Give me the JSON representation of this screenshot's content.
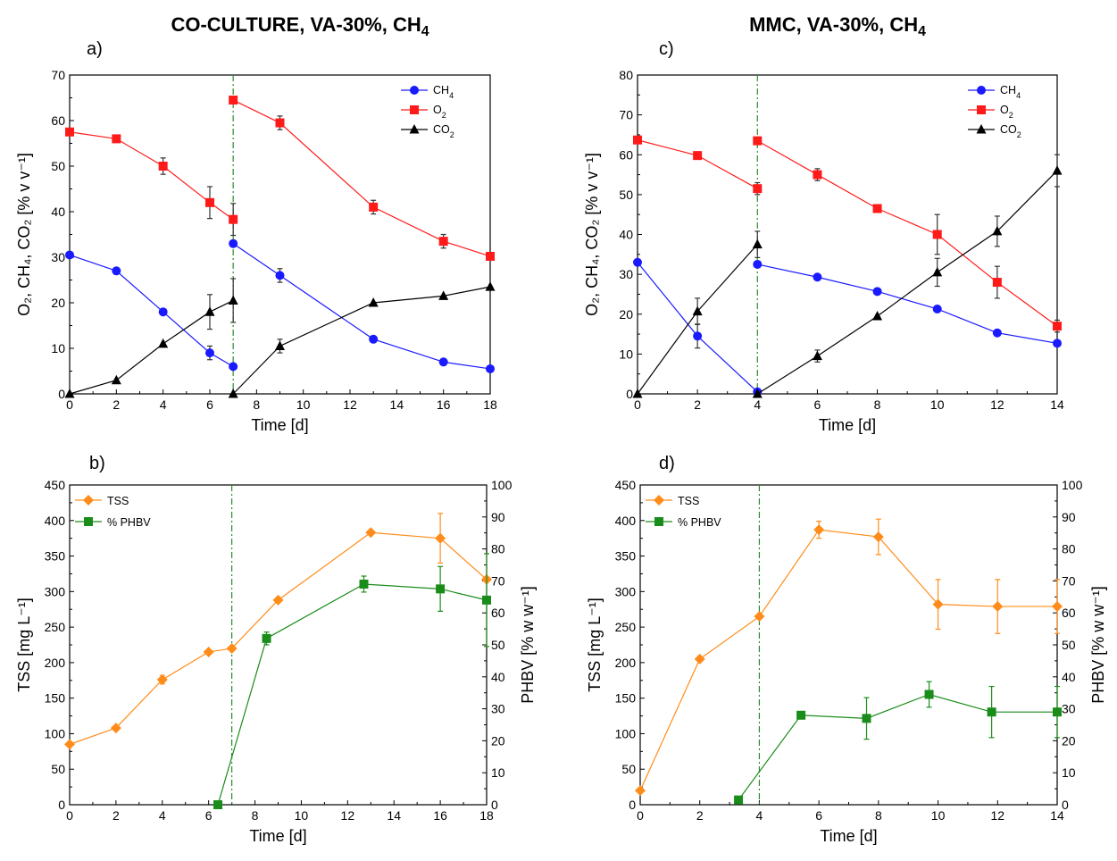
{
  "chart_data": [
    {
      "type": "line",
      "panel": "a)",
      "title": "CO-CULTURE, VA-30%, CH",
      "title_sub": "4",
      "xlabel": "Time [d]",
      "ylabel": "O₂, CH₄, CO₂ [% v v⁻¹]",
      "xlim": [
        0,
        18
      ],
      "ylim": [
        0,
        70
      ],
      "xticks": [
        0,
        2,
        4,
        6,
        8,
        10,
        12,
        14,
        16,
        18
      ],
      "yticks": [
        0,
        10,
        20,
        30,
        40,
        50,
        60,
        70
      ],
      "vline_x": 7,
      "legend": "top-right",
      "series": [
        {
          "name": "CH",
          "sub": "4",
          "color": "#1a1aff",
          "marker": "circle",
          "segments": [
            {
              "x": [
                0,
                2,
                4,
                6,
                7
              ],
              "y": [
                30.5,
                27,
                18,
                9,
                6
              ],
              "err": [
                0,
                0,
                0,
                1.5,
                0
              ]
            },
            {
              "x": [
                7,
                9,
                13,
                16,
                18
              ],
              "y": [
                33,
                26,
                12,
                7,
                5.5
              ],
              "err": [
                0,
                1.5,
                0,
                0,
                0
              ]
            }
          ]
        },
        {
          "name": "O",
          "sub": "2",
          "color": "#ff1a1a",
          "marker": "square",
          "segments": [
            {
              "x": [
                0,
                2,
                4,
                6,
                7
              ],
              "y": [
                57.5,
                56,
                50,
                42,
                38.3
              ],
              "err": [
                0,
                0,
                1.8,
                3.5,
                3.5
              ]
            },
            {
              "x": [
                7,
                9,
                13,
                16,
                18
              ],
              "y": [
                64.5,
                59.5,
                41,
                33.5,
                30.2
              ],
              "err": [
                0,
                1.5,
                1.5,
                1.5,
                0
              ]
            }
          ]
        },
        {
          "name": "CO",
          "sub": "2",
          "color": "#000000",
          "marker": "triangle",
          "segments": [
            {
              "x": [
                0,
                2,
                4,
                6,
                7
              ],
              "y": [
                0,
                3,
                11,
                18,
                20.5
              ],
              "err": [
                0,
                0,
                0,
                3.8,
                4.8
              ]
            },
            {
              "x": [
                7,
                9,
                13,
                16,
                18
              ],
              "y": [
                0,
                10.5,
                20,
                21.5,
                23.5
              ],
              "err": [
                0,
                1.5,
                0,
                0,
                0
              ]
            }
          ]
        }
      ]
    },
    {
      "type": "line",
      "panel": "c)",
      "title": "MMC, VA-30%, CH",
      "title_sub": "4",
      "xlabel": "Time [d]",
      "ylabel": "O₂, CH₄, CO₂ [% v v⁻¹]",
      "xlim": [
        0,
        14
      ],
      "ylim": [
        0,
        80
      ],
      "xticks": [
        0,
        2,
        4,
        6,
        8,
        10,
        12,
        14
      ],
      "yticks": [
        0,
        10,
        20,
        30,
        40,
        50,
        60,
        70,
        80
      ],
      "vline_x": 4,
      "legend": "top-right",
      "series": [
        {
          "name": "CH",
          "sub": "4",
          "color": "#1a1aff",
          "marker": "circle",
          "segments": [
            {
              "x": [
                0,
                2,
                4
              ],
              "y": [
                33,
                14.5,
                0.5
              ],
              "err": [
                0,
                3,
                0
              ]
            },
            {
              "x": [
                4,
                6,
                8,
                10,
                12,
                14
              ],
              "y": [
                32.5,
                29.3,
                25.7,
                21.3,
                15.3,
                12.7
              ],
              "err": [
                0,
                0,
                0,
                0,
                0,
                0
              ]
            }
          ]
        },
        {
          "name": "O",
          "sub": "2",
          "color": "#ff1a1a",
          "marker": "square",
          "segments": [
            {
              "x": [
                0,
                2,
                4
              ],
              "y": [
                63.7,
                59.8,
                51.5
              ],
              "err": [
                0,
                0,
                1.5
              ]
            },
            {
              "x": [
                4,
                6,
                8,
                10,
                12,
                14
              ],
              "y": [
                63.5,
                55,
                46.5,
                40,
                28,
                17
              ],
              "err": [
                0,
                1.5,
                0,
                5,
                4,
                1.5
              ]
            }
          ]
        },
        {
          "name": "CO",
          "sub": "2",
          "color": "#000000",
          "marker": "triangle",
          "segments": [
            {
              "x": [
                0,
                2,
                4
              ],
              "y": [
                0,
                20.7,
                37.5
              ],
              "err": [
                0,
                3.3,
                3.3
              ]
            },
            {
              "x": [
                4,
                6,
                8,
                10,
                12,
                14
              ],
              "y": [
                0,
                9.5,
                19.5,
                30.5,
                40.8,
                56
              ],
              "err": [
                0,
                1.5,
                0,
                3.5,
                3.8,
                4
              ]
            }
          ]
        }
      ]
    },
    {
      "type": "line",
      "panel": "b)",
      "xlabel": "Time [d]",
      "ylabel": "TSS [mg L⁻¹]",
      "y2label": "PHBV [% w w⁻¹]",
      "xlim": [
        0,
        18
      ],
      "ylim": [
        0,
        450
      ],
      "y2lim": [
        0,
        100
      ],
      "xticks": [
        0,
        2,
        4,
        6,
        8,
        10,
        12,
        14,
        16,
        18
      ],
      "yticks": [
        0,
        50,
        100,
        150,
        200,
        250,
        300,
        350,
        400,
        450
      ],
      "y2ticks": [
        0,
        10,
        20,
        30,
        40,
        50,
        60,
        70,
        80,
        90,
        100
      ],
      "vline_x": 7,
      "legend": "top-left",
      "series": [
        {
          "name": "TSS",
          "color": "#ff8c1a",
          "marker": "diamond",
          "axis": "left",
          "x": [
            0,
            2,
            4,
            6,
            7,
            9,
            13,
            16,
            18
          ],
          "y": [
            85,
            108,
            176,
            215,
            220,
            288,
            383,
            375,
            317
          ],
          "err": [
            0,
            0,
            6,
            0,
            0,
            0,
            0,
            35,
            0
          ]
        },
        {
          "name": "% PHBV",
          "color": "#1a8c1a",
          "marker": "square",
          "axis": "right",
          "x": [
            6.4,
            8.5,
            12.7,
            16,
            18
          ],
          "y": [
            0,
            52,
            69,
            67.5,
            64
          ],
          "err": [
            0,
            2,
            2.5,
            7,
            14.5
          ]
        }
      ]
    },
    {
      "type": "line",
      "panel": "d)",
      "xlabel": "Time [d]",
      "ylabel": "TSS [mg L⁻¹]",
      "y2label": "PHBV [% w w⁻¹]",
      "xlim": [
        0,
        14
      ],
      "ylim": [
        0,
        450
      ],
      "y2lim": [
        0,
        100
      ],
      "xticks": [
        0,
        2,
        4,
        6,
        8,
        10,
        12,
        14
      ],
      "yticks": [
        0,
        50,
        100,
        150,
        200,
        250,
        300,
        350,
        400,
        450
      ],
      "y2ticks": [
        0,
        10,
        20,
        30,
        40,
        50,
        60,
        70,
        80,
        90,
        100
      ],
      "vline_x": 4,
      "legend": "top-left",
      "series": [
        {
          "name": "TSS",
          "color": "#ff8c1a",
          "marker": "diamond",
          "axis": "left",
          "x": [
            0,
            2,
            4,
            6,
            8,
            10,
            12,
            14
          ],
          "y": [
            20,
            205,
            265,
            387,
            377,
            282,
            279,
            279
          ],
          "err": [
            0,
            0,
            0,
            12,
            25,
            35,
            38,
            38
          ]
        },
        {
          "name": "% PHBV",
          "color": "#1a8c1a",
          "marker": "square",
          "axis": "right",
          "x": [
            3.3,
            5.4,
            7.6,
            9.7,
            11.8,
            14
          ],
          "y": [
            1.5,
            28,
            27,
            34.5,
            29,
            29
          ],
          "err": [
            0,
            0,
            6.5,
            4,
            8,
            8
          ]
        }
      ]
    }
  ]
}
